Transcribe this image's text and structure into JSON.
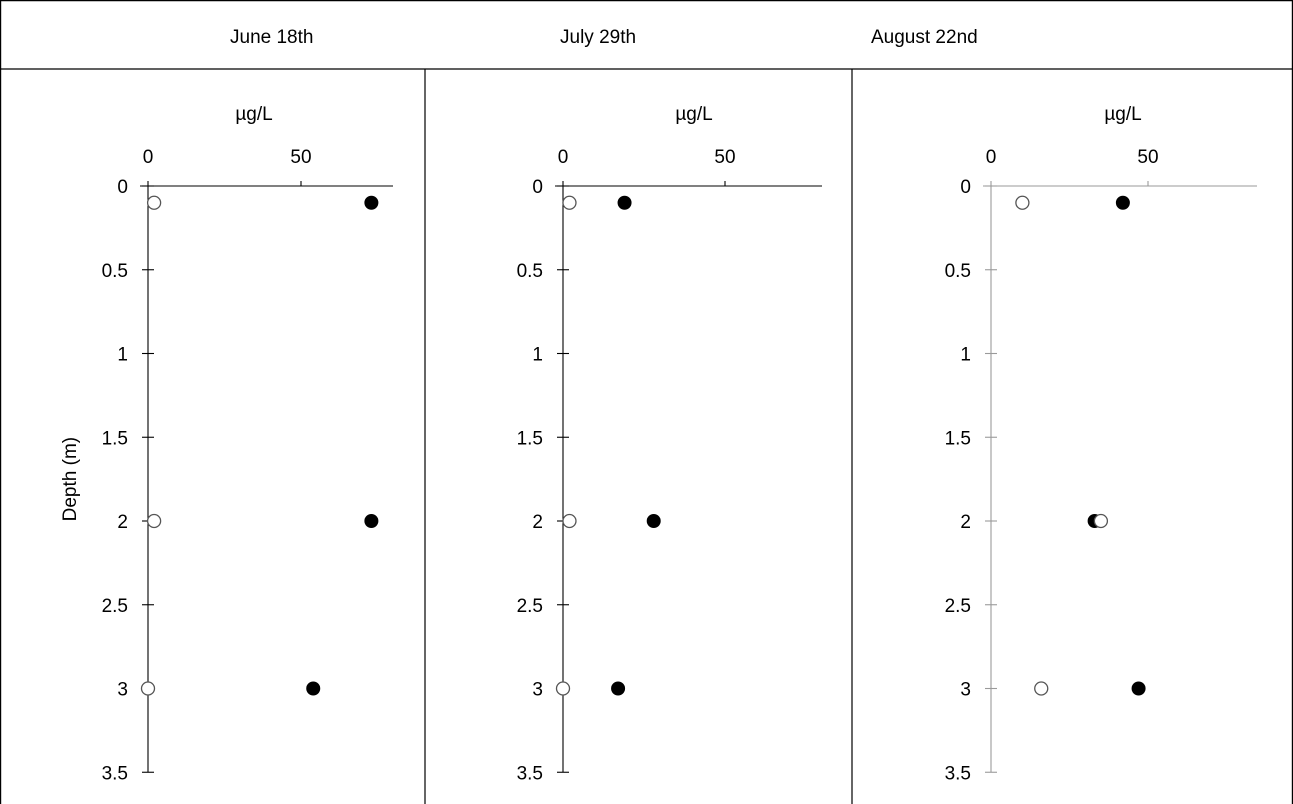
{
  "headers": [
    "June 18th",
    "July 29th",
    "August 22nd"
  ],
  "chart_data": [
    {
      "type": "scatter",
      "title": "June 18th",
      "xlabel": "µg/L",
      "ylabel": "Depth (m)",
      "xlim": [
        0,
        80
      ],
      "ylim": [
        0,
        3.5
      ],
      "y_reversed": true,
      "x_ticks": [
        0,
        50
      ],
      "y_ticks": [
        0,
        0.5,
        1,
        1.5,
        2,
        2.5,
        3,
        3.5
      ],
      "y_tick_labels": [
        "0",
        "0.5",
        "1",
        "1.5",
        "2",
        "2.5",
        "3",
        "3.5"
      ],
      "series": [
        {
          "marker": "filled",
          "points": [
            {
              "x": 73,
              "y": 0.1
            },
            {
              "x": 73,
              "y": 2
            },
            {
              "x": 54,
              "y": 3
            }
          ]
        },
        {
          "marker": "open",
          "points": [
            {
              "x": 2,
              "y": 0.1
            },
            {
              "x": 2,
              "y": 2
            },
            {
              "x": 0,
              "y": 3
            }
          ]
        }
      ]
    },
    {
      "type": "scatter",
      "title": "July 29th",
      "xlabel": "µg/L",
      "ylabel": "",
      "xlim": [
        0,
        85
      ],
      "ylim": [
        0,
        3.5
      ],
      "y_reversed": true,
      "x_ticks": [
        0,
        50
      ],
      "y_ticks": [
        0,
        0.5,
        1,
        1.5,
        2,
        2.5,
        3,
        3.5
      ],
      "y_tick_labels": [
        "0",
        "0.5",
        "1",
        "1.5",
        "2",
        "2.5",
        "3",
        "3.5"
      ],
      "series": [
        {
          "marker": "filled",
          "points": [
            {
              "x": 19,
              "y": 0.1
            },
            {
              "x": 28,
              "y": 2
            },
            {
              "x": 17,
              "y": 3
            }
          ]
        },
        {
          "marker": "open",
          "points": [
            {
              "x": 2,
              "y": 0.1
            },
            {
              "x": 2,
              "y": 2
            },
            {
              "x": 0,
              "y": 3
            }
          ]
        }
      ]
    },
    {
      "type": "scatter",
      "title": "August 22nd",
      "xlabel": "µg/L",
      "ylabel": "",
      "xlim": [
        0,
        90
      ],
      "ylim": [
        0,
        3.5
      ],
      "y_reversed": true,
      "x_ticks": [
        0,
        50
      ],
      "y_ticks": [
        0,
        0.5,
        1,
        1.5,
        2,
        2.5,
        3,
        3.5
      ],
      "y_tick_labels": [
        "0",
        "0.5",
        "1",
        "1.5",
        "2",
        "2.5",
        "3",
        "3.5"
      ],
      "series": [
        {
          "marker": "filled",
          "points": [
            {
              "x": 42,
              "y": 0.1
            },
            {
              "x": 33,
              "y": 2
            },
            {
              "x": 47,
              "y": 3
            }
          ]
        },
        {
          "marker": "open",
          "points": [
            {
              "x": 10,
              "y": 0.1
            },
            {
              "x": 35,
              "y": 2
            },
            {
              "x": 16,
              "y": 3
            }
          ]
        }
      ]
    }
  ]
}
